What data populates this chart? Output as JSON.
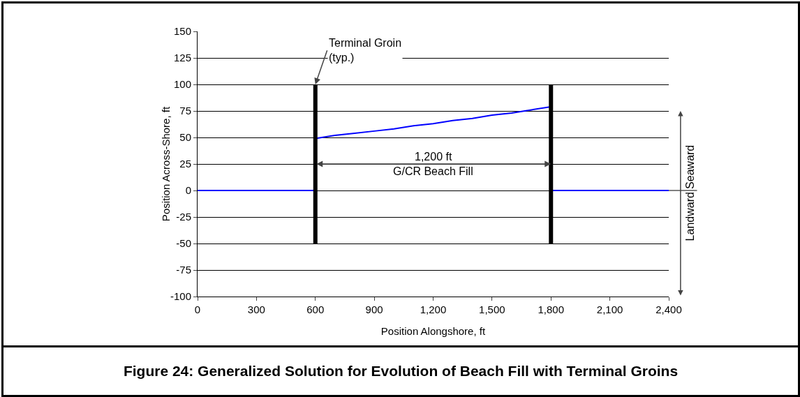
{
  "chart_data": {
    "type": "line",
    "title": "Figure 24: Generalized Solution for Evolution of Beach Fill with Terminal Groins",
    "xlabel": "Position Alongshore, ft",
    "ylabel": "Position Across-Shore, ft",
    "xlim": [
      0,
      2400
    ],
    "xticks": [
      0,
      300,
      600,
      900,
      {
        "value": 1200,
        "label": "1,200"
      },
      {
        "value": 1500,
        "label": "1,500"
      },
      {
        "value": 1800,
        "label": "1,800"
      },
      {
        "value": 2100,
        "label": "2,100"
      },
      {
        "value": 2400,
        "label": "2,400"
      }
    ],
    "ylim": [
      -100,
      150
    ],
    "yticks": [
      -100,
      -75,
      -50,
      -25,
      0,
      25,
      50,
      75,
      100,
      125,
      150
    ],
    "grid": "y",
    "marker": "none",
    "line_style": "solid",
    "series": [
      {
        "color": "#0000ff",
        "x": [
          0,
          600
        ],
        "values": [
          0,
          0
        ]
      },
      {
        "color": "#0000ff",
        "x": [
          600,
          700,
          800,
          900,
          1000,
          1100,
          1200,
          1300,
          1400,
          1500,
          1600,
          1700,
          1800
        ],
        "values": [
          49,
          52,
          54,
          56,
          58,
          61,
          63,
          66,
          68,
          71,
          73,
          76,
          79
        ]
      },
      {
        "color": "#0000ff",
        "x": [
          1800,
          2400
        ],
        "values": [
          0,
          0
        ]
      },
      {
        "color": "#000000",
        "x": [
          600,
          600
        ],
        "values": [
          -50,
          100
        ]
      },
      {
        "color": "#000000",
        "x": [
          1800,
          1800
        ],
        "values": [
          -50,
          100
        ]
      }
    ],
    "annotations": [
      {
        "text": "Terminal Groin\n(typ.)",
        "x": 600,
        "y": 100
      },
      "1,200 ft",
      "G/CR Beach Fill",
      "Seaward",
      "Landward"
    ]
  }
}
